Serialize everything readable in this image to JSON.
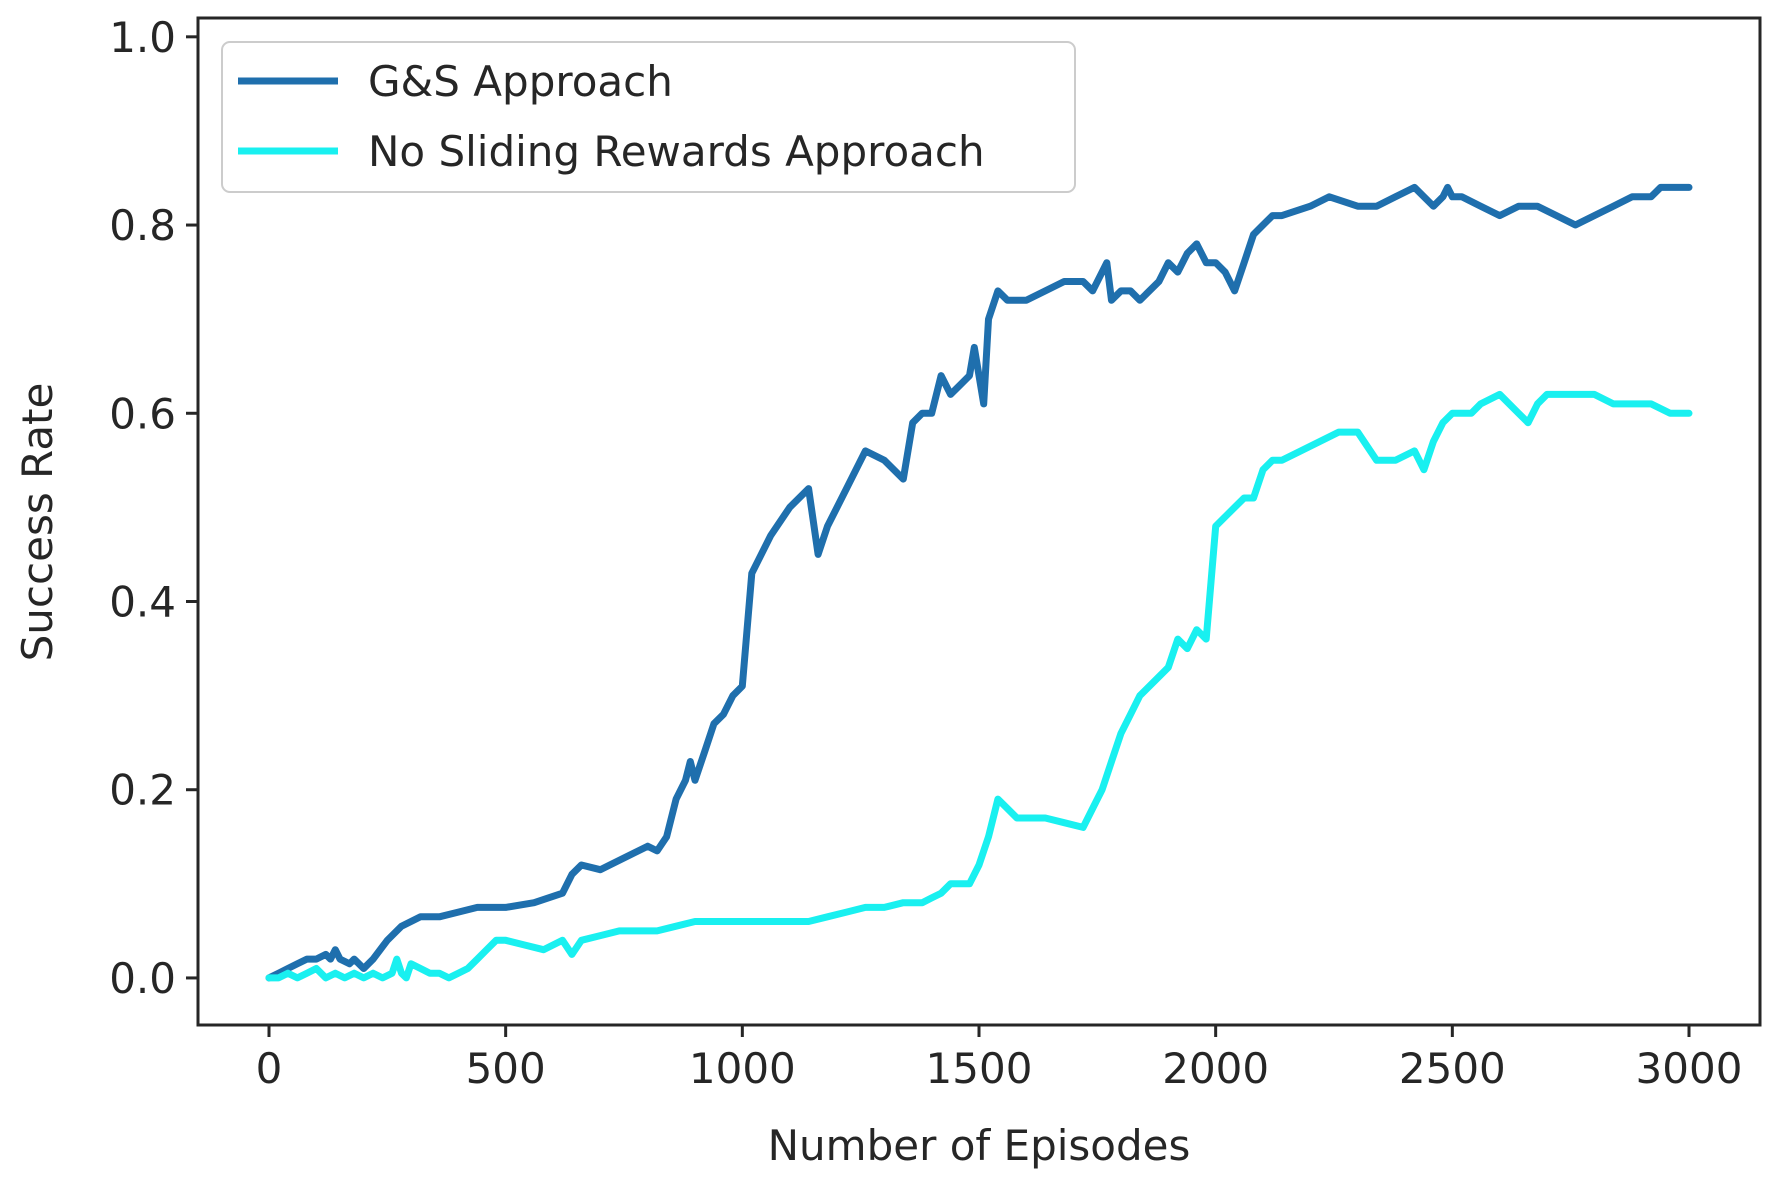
{
  "chart_data": {
    "type": "line",
    "title": "",
    "xlabel": "Number of Episodes",
    "ylabel": "Success Rate",
    "xlim": [
      -150,
      3150
    ],
    "ylim": [
      -0.05,
      1.02
    ],
    "xticks": [
      0,
      500,
      1000,
      1500,
      2000,
      2500,
      3000
    ],
    "xtick_labels": [
      "0",
      "500",
      "1000",
      "1500",
      "2000",
      "2500",
      "3000"
    ],
    "yticks": [
      0.0,
      0.2,
      0.4,
      0.6,
      0.8,
      1.0
    ],
    "ytick_labels": [
      "0.0",
      "0.2",
      "0.4",
      "0.6",
      "0.8",
      "1.0"
    ],
    "grid": false,
    "legend_position": "top-left",
    "series": [
      {
        "name": "G&S Approach",
        "color": "#1f6fad",
        "x": [
          0,
          20,
          40,
          60,
          80,
          100,
          120,
          130,
          140,
          150,
          170,
          180,
          200,
          220,
          250,
          280,
          320,
          360,
          400,
          440,
          470,
          500,
          560,
          620,
          640,
          660,
          700,
          720,
          760,
          800,
          820,
          840,
          860,
          880,
          890,
          900,
          920,
          940,
          960,
          980,
          1000,
          1020,
          1060,
          1100,
          1140,
          1160,
          1180,
          1220,
          1260,
          1300,
          1340,
          1360,
          1380,
          1400,
          1420,
          1440,
          1460,
          1480,
          1490,
          1500,
          1510,
          1520,
          1540,
          1560,
          1600,
          1640,
          1680,
          1720,
          1740,
          1760,
          1770,
          1780,
          1800,
          1820,
          1840,
          1880,
          1900,
          1920,
          1940,
          1960,
          1980,
          2000,
          2020,
          2040,
          2060,
          2080,
          2100,
          2120,
          2140,
          2200,
          2240,
          2300,
          2340,
          2380,
          2420,
          2460,
          2480,
          2490,
          2500,
          2520,
          2560,
          2600,
          2640,
          2680,
          2720,
          2760,
          2800,
          2840,
          2880,
          2920,
          2940,
          2960,
          2980,
          3000
        ],
        "y": [
          0.0,
          0.005,
          0.01,
          0.015,
          0.02,
          0.02,
          0.025,
          0.02,
          0.03,
          0.02,
          0.015,
          0.02,
          0.01,
          0.02,
          0.04,
          0.055,
          0.065,
          0.065,
          0.07,
          0.075,
          0.075,
          0.075,
          0.08,
          0.09,
          0.11,
          0.12,
          0.115,
          0.12,
          0.13,
          0.14,
          0.135,
          0.15,
          0.19,
          0.21,
          0.23,
          0.21,
          0.24,
          0.27,
          0.28,
          0.3,
          0.31,
          0.43,
          0.47,
          0.5,
          0.52,
          0.45,
          0.48,
          0.52,
          0.56,
          0.55,
          0.53,
          0.59,
          0.6,
          0.6,
          0.64,
          0.62,
          0.63,
          0.64,
          0.67,
          0.64,
          0.61,
          0.7,
          0.73,
          0.72,
          0.72,
          0.73,
          0.74,
          0.74,
          0.73,
          0.75,
          0.76,
          0.72,
          0.73,
          0.73,
          0.72,
          0.74,
          0.76,
          0.75,
          0.77,
          0.78,
          0.76,
          0.76,
          0.75,
          0.73,
          0.76,
          0.79,
          0.8,
          0.81,
          0.81,
          0.82,
          0.83,
          0.82,
          0.82,
          0.83,
          0.84,
          0.82,
          0.83,
          0.84,
          0.83,
          0.83,
          0.82,
          0.81,
          0.82,
          0.82,
          0.81,
          0.8,
          0.81,
          0.82,
          0.83,
          0.83,
          0.84,
          0.84,
          0.84,
          0.84
        ]
      },
      {
        "name": "No Sliding Rewards Approach",
        "color": "#19f0f0",
        "x": [
          0,
          20,
          40,
          60,
          80,
          100,
          120,
          140,
          160,
          180,
          200,
          220,
          240,
          260,
          270,
          280,
          290,
          300,
          320,
          340,
          360,
          380,
          400,
          420,
          440,
          460,
          480,
          500,
          540,
          580,
          620,
          640,
          660,
          700,
          740,
          780,
          820,
          860,
          900,
          940,
          980,
          1020,
          1060,
          1100,
          1140,
          1180,
          1220,
          1260,
          1300,
          1340,
          1380,
          1400,
          1420,
          1440,
          1460,
          1480,
          1500,
          1520,
          1540,
          1560,
          1580,
          1600,
          1640,
          1680,
          1720,
          1740,
          1760,
          1780,
          1800,
          1820,
          1840,
          1880,
          1900,
          1920,
          1940,
          1960,
          1980,
          2000,
          2020,
          2040,
          2060,
          2080,
          2100,
          2120,
          2140,
          2180,
          2220,
          2260,
          2300,
          2340,
          2360,
          2380,
          2420,
          2440,
          2460,
          2480,
          2500,
          2540,
          2560,
          2600,
          2640,
          2660,
          2680,
          2700,
          2720,
          2760,
          2800,
          2840,
          2880,
          2920,
          2960,
          3000
        ],
        "y": [
          0.0,
          0.0,
          0.005,
          0.0,
          0.005,
          0.01,
          0.0,
          0.005,
          0.0,
          0.005,
          0.0,
          0.005,
          0.0,
          0.005,
          0.02,
          0.005,
          0.0,
          0.015,
          0.01,
          0.005,
          0.005,
          0.0,
          0.005,
          0.01,
          0.02,
          0.03,
          0.04,
          0.04,
          0.035,
          0.03,
          0.04,
          0.025,
          0.04,
          0.045,
          0.05,
          0.05,
          0.05,
          0.055,
          0.06,
          0.06,
          0.06,
          0.06,
          0.06,
          0.06,
          0.06,
          0.065,
          0.07,
          0.075,
          0.075,
          0.08,
          0.08,
          0.085,
          0.09,
          0.1,
          0.1,
          0.1,
          0.12,
          0.15,
          0.19,
          0.18,
          0.17,
          0.17,
          0.17,
          0.165,
          0.16,
          0.18,
          0.2,
          0.23,
          0.26,
          0.28,
          0.3,
          0.32,
          0.33,
          0.36,
          0.35,
          0.37,
          0.36,
          0.48,
          0.49,
          0.5,
          0.51,
          0.51,
          0.54,
          0.55,
          0.55,
          0.56,
          0.57,
          0.58,
          0.58,
          0.55,
          0.55,
          0.55,
          0.56,
          0.54,
          0.57,
          0.59,
          0.6,
          0.6,
          0.61,
          0.62,
          0.6,
          0.59,
          0.61,
          0.62,
          0.62,
          0.62,
          0.62,
          0.61,
          0.61,
          0.61,
          0.6,
          0.6
        ]
      }
    ]
  }
}
